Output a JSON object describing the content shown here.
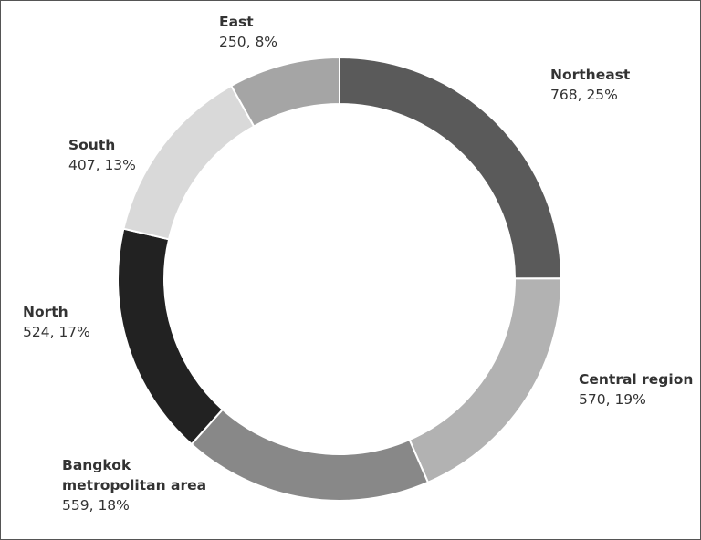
{
  "chart_data": {
    "type": "donut",
    "categories": [
      "Northeast",
      "Central region",
      "Bangkok metropolitan area",
      "North",
      "South",
      "East"
    ],
    "values": [
      768,
      570,
      559,
      524,
      407,
      250
    ],
    "value_labels": [
      "768, 25%",
      "570, 19%",
      "559, 18%",
      "524, 17%",
      "407, 13%",
      "250, 8%"
    ],
    "colors": [
      "#5a5a5a",
      "#b2b2b2",
      "#888888",
      "#222222",
      "#d9d9d9",
      "#a5a5a5"
    ]
  }
}
